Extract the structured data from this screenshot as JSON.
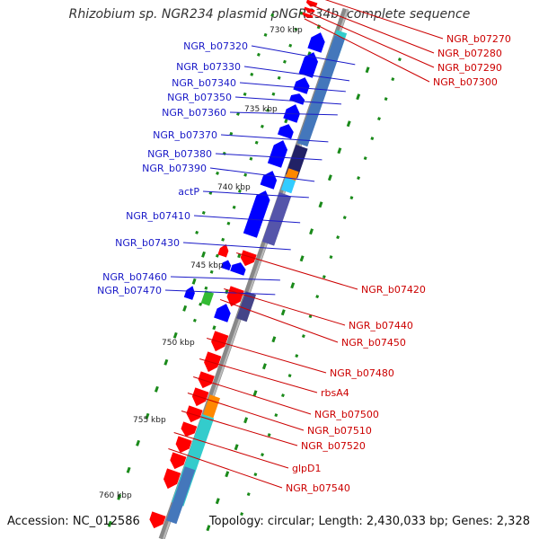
{
  "title": "Rhizobium sp. NGR234 plasmid pNGR234b, complete sequence",
  "footer": {
    "accession": "Accession: NC_012586",
    "topology": "Topology: circular; Length: 2,430,033 bp; Genes: 2,328"
  },
  "ruler": {
    "labels": [
      "730 kbp",
      "735 kbp",
      "740 kbp",
      "745 kbp",
      "750 kbp",
      "755 kbp",
      "760 kbp"
    ]
  },
  "genes": {
    "left": [
      "NGR_b07320",
      "NGR_b07330",
      "NGR_b07340",
      "NGR_b07350",
      "NGR_b07360",
      "NGR_b07370",
      "NGR_b07380",
      "NGR_b07390",
      "actP",
      "NGR_b07410",
      "NGR_b07430",
      "NGR_b07460",
      "NGR_b07470"
    ],
    "right": [
      "NGR_b07270",
      "NGR_b07280",
      "NGR_b07290",
      "NGR_b07300",
      "NGR_b07420",
      "NGR_b07440",
      "NGR_b07450",
      "NGR_b07480",
      "rbsA4",
      "NGR_b07500",
      "NGR_b07510",
      "NGR_b07520",
      "glpD1",
      "NGR_b07540"
    ]
  },
  "colors": {
    "forward": "#0000ff",
    "forward_label": "#1a1ac8",
    "reverse": "#ff0000",
    "reverse_label": "#cc0000",
    "backbone": "#888888",
    "tick": "#1a8a1a"
  }
}
